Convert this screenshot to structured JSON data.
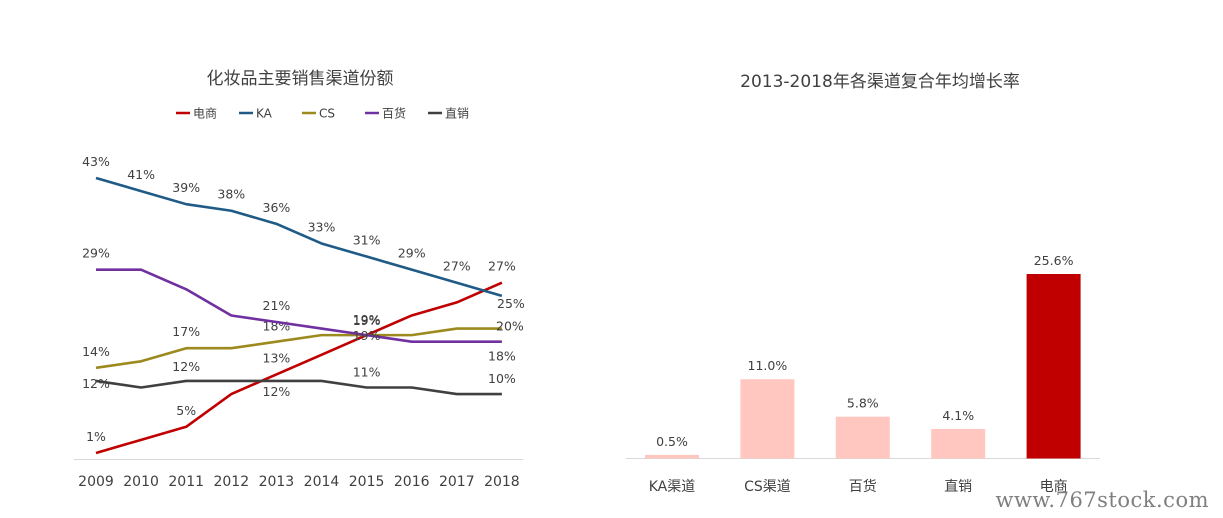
{
  "chart_data": [
    {
      "type": "line",
      "title": "化妆品主要销售渠道份额",
      "categories": [
        "2009",
        "2010",
        "2011",
        "2012",
        "2013",
        "2014",
        "2015",
        "2016",
        "2017",
        "2018"
      ],
      "series": [
        {
          "name": "电商",
          "color": "#c00000",
          "values": [
            1,
            3,
            5,
            10,
            13,
            16,
            19,
            22,
            24,
            27
          ],
          "labels": {
            "0": "1%",
            "2": "5%",
            "4": "13%",
            "6": "19%",
            "9": "27%"
          }
        },
        {
          "name": "KA",
          "color": "#1f5b86",
          "values": [
            43,
            41,
            39,
            38,
            36,
            33,
            31,
            29,
            27,
            25
          ],
          "labels": {
            "0": "43%",
            "1": "41%",
            "2": "39%",
            "3": "38%",
            "4": "36%",
            "5": "33%",
            "6": "31%",
            "7": "29%",
            "8": "27%",
            "9": "25%"
          }
        },
        {
          "name": "CS",
          "color": "#9c8a1e",
          "values": [
            14,
            15,
            17,
            17,
            18,
            19,
            19,
            19,
            20,
            20
          ],
          "labels": {
            "0": "14%",
            "2": "17%",
            "4": "18%",
            "6": "19%",
            "9": "20%"
          }
        },
        {
          "name": "百货",
          "color": "#7030a0",
          "values": [
            29,
            29,
            26,
            22,
            21,
            20,
            19,
            18,
            18,
            18
          ],
          "labels": {
            "0": "29%",
            "4": "21%",
            "6": "19%",
            "9": "18%"
          }
        },
        {
          "name": "直销",
          "color": "#404040",
          "values": [
            12,
            11,
            12,
            12,
            12,
            12,
            11,
            11,
            10,
            10
          ],
          "labels": {
            "0": "12%",
            "2": "12%",
            "4": "12%",
            "6": "11%",
            "9": "10%"
          }
        }
      ],
      "ylim": [
        0,
        45
      ],
      "legend": "top"
    },
    {
      "type": "bar",
      "title": "2013-2018年各渠道复合年均增长率",
      "categories": [
        "KA渠道",
        "CS渠道",
        "百货",
        "直销",
        "电商"
      ],
      "values": [
        0.5,
        11.0,
        5.8,
        4.1,
        25.6
      ],
      "value_labels": [
        "0.5%",
        "11.0%",
        "5.8%",
        "4.1%",
        "25.6%"
      ],
      "colors": [
        "#ffc7c0",
        "#ffc7c0",
        "#ffc7c0",
        "#ffc7c0",
        "#c00000"
      ],
      "ylim": [
        0,
        30
      ]
    }
  ],
  "watermark": "www.767stock.com"
}
